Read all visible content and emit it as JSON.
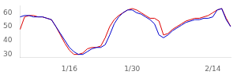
{
  "chart_data": {
    "type": "line",
    "categories": [
      null,
      null,
      null,
      null,
      null,
      null,
      null,
      null,
      null,
      null,
      null,
      "1/16",
      null,
      null,
      null,
      null,
      null,
      null,
      null,
      null,
      null,
      null,
      null,
      null,
      null,
      "1/30",
      null,
      null,
      null,
      null,
      null,
      null,
      null,
      null,
      null,
      null,
      null,
      null,
      null,
      null,
      null,
      null,
      null,
      "2/14",
      null,
      null,
      null,
      null
    ],
    "series": [
      {
        "color": "#0000cc",
        "values": [
          57,
          58,
          58,
          57,
          57,
          57,
          56,
          55,
          50,
          45,
          40,
          35,
          32,
          30,
          30,
          32,
          34,
          35,
          35,
          37,
          44,
          52,
          57,
          60,
          62,
          62,
          60,
          59,
          57,
          55,
          52,
          44,
          42,
          44,
          47,
          49,
          51,
          53,
          54,
          55,
          55,
          56,
          56,
          57,
          62,
          63,
          55,
          50
        ]
      },
      {
        "color": "#dd0000",
        "values": [
          48,
          57,
          58,
          58,
          57,
          57,
          56,
          55,
          50,
          44,
          38,
          33,
          30,
          30,
          31,
          34,
          35,
          35,
          36,
          42,
          50,
          55,
          58,
          60,
          62,
          63,
          62,
          60,
          58,
          56,
          56,
          54,
          44,
          45,
          48,
          50,
          52,
          54,
          55,
          56,
          56,
          57,
          58,
          60,
          62,
          63,
          56,
          50
        ]
      }
    ],
    "ylim": [
      28,
      65
    ],
    "yticks": [
      30,
      40,
      50,
      60
    ],
    "grid": false
  }
}
